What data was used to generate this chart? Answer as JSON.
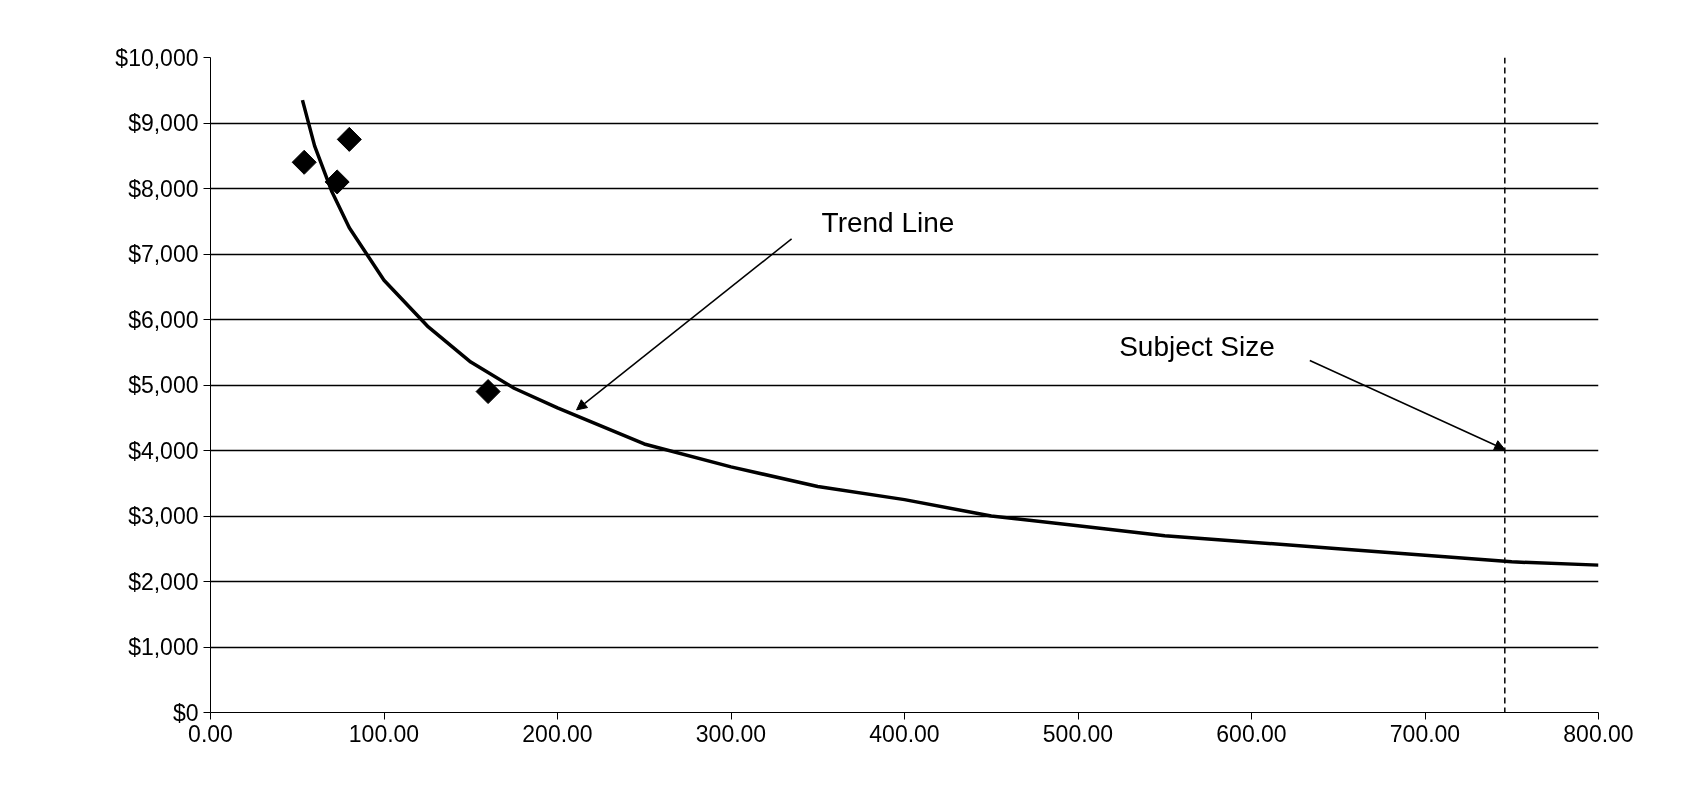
{
  "chart_data": {
    "type": "scatter",
    "xlim": [
      0,
      800
    ],
    "ylim": [
      0,
      10000
    ],
    "xticks": [
      {
        "value": 0,
        "label": "0.00"
      },
      {
        "value": 100,
        "label": "100.00"
      },
      {
        "value": 200,
        "label": "200.00"
      },
      {
        "value": 300,
        "label": "300.00"
      },
      {
        "value": 400,
        "label": "400.00"
      },
      {
        "value": 500,
        "label": "500.00"
      },
      {
        "value": 600,
        "label": "600.00"
      },
      {
        "value": 700,
        "label": "700.00"
      },
      {
        "value": 800,
        "label": "800.00"
      }
    ],
    "yticks": [
      {
        "value": 0,
        "label": "$0"
      },
      {
        "value": 1000,
        "label": "$1,000"
      },
      {
        "value": 2000,
        "label": "$2,000"
      },
      {
        "value": 3000,
        "label": "$3,000"
      },
      {
        "value": 4000,
        "label": "$4,000"
      },
      {
        "value": 5000,
        "label": "$5,000"
      },
      {
        "value": 6000,
        "label": "$6,000"
      },
      {
        "value": 7000,
        "label": "$7,000"
      },
      {
        "value": 8000,
        "label": "$8,000"
      },
      {
        "value": 9000,
        "label": "$9,000"
      },
      {
        "value": 10000,
        "label": "$10,000"
      }
    ],
    "grid": "y",
    "series": [
      {
        "marker": "diamond",
        "color": "#000000",
        "x": [
          54,
          73,
          80,
          160
        ],
        "values": [
          8400,
          8100,
          8750,
          4900
        ]
      },
      {
        "type": "line",
        "line_style": "solid",
        "color": "#000000",
        "x": [
          53,
          60,
          70,
          80,
          100,
          125,
          150,
          175,
          200,
          250,
          300,
          350,
          400,
          450,
          500,
          550,
          600,
          650,
          700,
          750,
          800
        ],
        "values": [
          9350,
          8650,
          7950,
          7400,
          6600,
          5900,
          5350,
          4950,
          4650,
          4100,
          3750,
          3450,
          3250,
          3000,
          2850,
          2700,
          2600,
          2500,
          2400,
          2300,
          2250
        ]
      }
    ],
    "ref_lines": [
      {
        "axis": "x",
        "value": 746,
        "line_style": "dashed",
        "color": "#000000"
      }
    ],
    "annotations": [
      {
        "text": "Trend Line",
        "x": 211,
        "y": 4620
      },
      {
        "text": "Subject Size",
        "x": 746,
        "y": 4016
      }
    ]
  }
}
